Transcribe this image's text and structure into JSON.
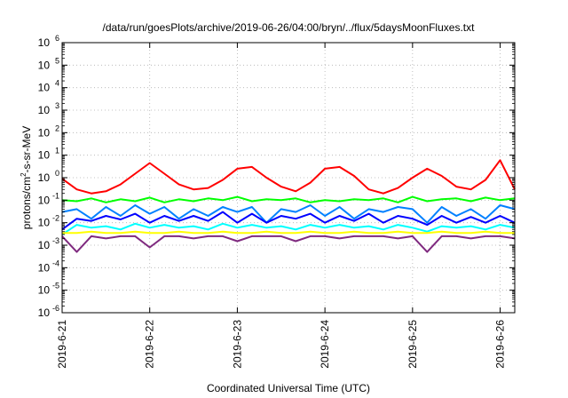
{
  "chart_data": {
    "type": "line",
    "title": "/data/run/goesPlots/archive/2019-06-26/04:00/bryn/../flux/5daysMoonFluxes.txt",
    "xlabel": "Coordinated Universal Time (UTC)",
    "ylabel": {
      "pre": "protons/cm",
      "sup": "2",
      "post": "-s-sr-MeV"
    },
    "y_scale": "log",
    "ylim": [
      1e-06,
      1000000.0
    ],
    "y_ticks": [
      {
        "value": 1e-06,
        "base": "10",
        "exp": "-6"
      },
      {
        "value": 1e-05,
        "base": "10",
        "exp": "-5"
      },
      {
        "value": 0.0001,
        "base": "10",
        "exp": "-4"
      },
      {
        "value": 0.001,
        "base": "10",
        "exp": "-3"
      },
      {
        "value": 0.01,
        "base": "10",
        "exp": "-2"
      },
      {
        "value": 0.1,
        "base": "10",
        "exp": "-1"
      },
      {
        "value": 1,
        "base": "10",
        "exp": "0"
      },
      {
        "value": 10.0,
        "base": "10",
        "exp": "1"
      },
      {
        "value": 100.0,
        "base": "10",
        "exp": "2"
      },
      {
        "value": 1000.0,
        "base": "10",
        "exp": "3"
      },
      {
        "value": 10000.0,
        "base": "10",
        "exp": "4"
      },
      {
        "value": 100000.0,
        "base": "10",
        "exp": "5"
      },
      {
        "value": 1000000.0,
        "base": "10",
        "exp": "6"
      }
    ],
    "xlim": [
      "2019-06-21T00:00",
      "2019-06-26T04:00"
    ],
    "x_ticks": [
      {
        "value": "2019-06-21T00:00",
        "label": "2019-6-21"
      },
      {
        "value": "2019-06-22T00:00",
        "label": "2019-6-22"
      },
      {
        "value": "2019-06-23T00:00",
        "label": "2019-6-23"
      },
      {
        "value": "2019-06-24T00:00",
        "label": "2019-6-24"
      },
      {
        "value": "2019-06-25T00:00",
        "label": "2019-6-25"
      },
      {
        "value": "2019-06-26T00:00",
        "label": "2019-6-26"
      }
    ],
    "grid": true,
    "legend": "none",
    "x": [
      "2019-06-21T00:00",
      "2019-06-21T04:00",
      "2019-06-21T08:00",
      "2019-06-21T12:00",
      "2019-06-21T16:00",
      "2019-06-21T20:00",
      "2019-06-22T00:00",
      "2019-06-22T04:00",
      "2019-06-22T08:00",
      "2019-06-22T12:00",
      "2019-06-22T16:00",
      "2019-06-22T20:00",
      "2019-06-23T00:00",
      "2019-06-23T04:00",
      "2019-06-23T08:00",
      "2019-06-23T12:00",
      "2019-06-23T16:00",
      "2019-06-23T20:00",
      "2019-06-24T00:00",
      "2019-06-24T04:00",
      "2019-06-24T08:00",
      "2019-06-24T12:00",
      "2019-06-24T16:00",
      "2019-06-24T20:00",
      "2019-06-25T00:00",
      "2019-06-25T04:00",
      "2019-06-25T08:00",
      "2019-06-25T12:00",
      "2019-06-25T16:00",
      "2019-06-25T20:00",
      "2019-06-26T00:00",
      "2019-06-26T04:00"
    ],
    "series": [
      {
        "color": "#ff0000",
        "values": [
          0.9,
          0.3,
          0.2,
          0.25,
          0.5,
          1.5,
          4.5,
          1.5,
          0.5,
          0.3,
          0.35,
          0.8,
          2.5,
          3.0,
          1.0,
          0.4,
          0.25,
          0.6,
          2.5,
          3.0,
          1.2,
          0.3,
          0.2,
          0.35,
          1.0,
          2.5,
          1.2,
          0.4,
          0.3,
          0.8,
          6.0,
          0.3
        ]
      },
      {
        "color": "#00ff00",
        "values": [
          0.1,
          0.09,
          0.12,
          0.08,
          0.11,
          0.09,
          0.13,
          0.08,
          0.11,
          0.09,
          0.12,
          0.1,
          0.14,
          0.09,
          0.11,
          0.1,
          0.12,
          0.08,
          0.1,
          0.09,
          0.11,
          0.1,
          0.12,
          0.08,
          0.14,
          0.09,
          0.11,
          0.12,
          0.09,
          0.13,
          0.1,
          0.12
        ]
      },
      {
        "color": "#0080ff",
        "values": [
          0.03,
          0.04,
          0.015,
          0.05,
          0.02,
          0.06,
          0.025,
          0.05,
          0.015,
          0.04,
          0.02,
          0.05,
          0.03,
          0.05,
          0.01,
          0.04,
          0.03,
          0.06,
          0.02,
          0.05,
          0.015,
          0.04,
          0.03,
          0.05,
          0.04,
          0.01,
          0.05,
          0.02,
          0.04,
          0.015,
          0.06,
          0.04
        ]
      },
      {
        "color": "#0000ff",
        "values": [
          0.005,
          0.015,
          0.012,
          0.02,
          0.014,
          0.025,
          0.01,
          0.02,
          0.012,
          0.02,
          0.012,
          0.03,
          0.01,
          0.025,
          0.01,
          0.02,
          0.015,
          0.025,
          0.01,
          0.02,
          0.012,
          0.025,
          0.01,
          0.02,
          0.015,
          0.008,
          0.02,
          0.01,
          0.018,
          0.01,
          0.02,
          0.01
        ]
      },
      {
        "color": "#00ffff",
        "values": [
          0.003,
          0.008,
          0.006,
          0.007,
          0.005,
          0.009,
          0.006,
          0.008,
          0.006,
          0.007,
          0.005,
          0.009,
          0.006,
          0.008,
          0.006,
          0.007,
          0.005,
          0.008,
          0.006,
          0.008,
          0.006,
          0.007,
          0.005,
          0.008,
          0.006,
          0.004,
          0.007,
          0.006,
          0.007,
          0.005,
          0.008,
          0.006
        ]
      },
      {
        "color": "#ffff00",
        "values": [
          0.0035,
          0.0035,
          0.004,
          0.0035,
          0.0035,
          0.004,
          0.0035,
          0.0035,
          0.004,
          0.0035,
          0.0035,
          0.004,
          0.0035,
          0.0035,
          0.004,
          0.0035,
          0.0035,
          0.004,
          0.0035,
          0.0035,
          0.004,
          0.0035,
          0.0035,
          0.004,
          0.0035,
          0.0035,
          0.004,
          0.0035,
          0.0035,
          0.004,
          0.0035,
          0.0035
        ]
      },
      {
        "color": "#7f2a7f",
        "values": [
          0.0025,
          0.0005,
          0.0025,
          0.002,
          0.0025,
          0.0025,
          0.0008,
          0.0025,
          0.0025,
          0.002,
          0.0025,
          0.0025,
          0.0015,
          0.0025,
          0.0025,
          0.0025,
          0.0015,
          0.0025,
          0.0025,
          0.002,
          0.0025,
          0.0025,
          0.0025,
          0.002,
          0.0025,
          0.0005,
          0.0025,
          0.0025,
          0.002,
          0.0025,
          0.0025,
          0.002
        ]
      }
    ]
  }
}
